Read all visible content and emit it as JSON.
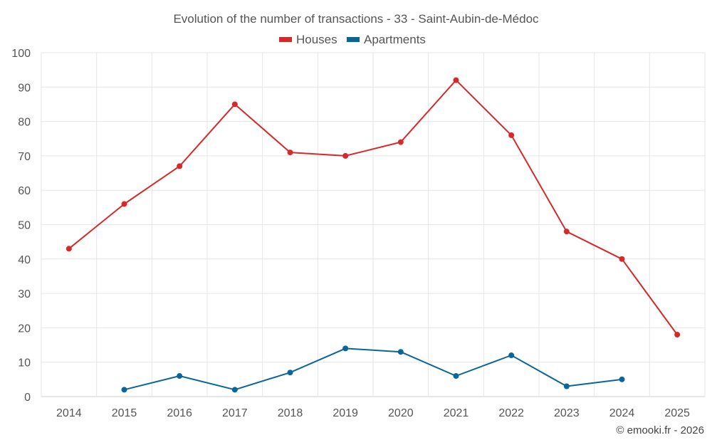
{
  "chart_data": {
    "type": "line",
    "title": "Evolution of the number of transactions - 33 - Saint-Aubin-de-Médoc",
    "categories": [
      "2014",
      "2015",
      "2016",
      "2017",
      "2018",
      "2019",
      "2020",
      "2021",
      "2022",
      "2023",
      "2024",
      "2025"
    ],
    "series": [
      {
        "name": "Houses",
        "color": "#d62a2a",
        "values": [
          43,
          56,
          67,
          85,
          71,
          70,
          74,
          92,
          76,
          48,
          40,
          18
        ]
      },
      {
        "name": "Apartments",
        "color": "#09669a",
        "values": [
          null,
          2,
          6,
          2,
          7,
          14,
          13,
          6,
          12,
          3,
          5,
          null
        ]
      }
    ],
    "y_ticks": [
      "0",
      "10",
      "20",
      "30",
      "40",
      "50",
      "60",
      "70",
      "80",
      "90",
      "100"
    ],
    "ylim": [
      0,
      100
    ],
    "xlabel": "",
    "ylabel": "",
    "grid": true,
    "legend_position": "top-center"
  },
  "credit": "© emooki.fr - 2026"
}
